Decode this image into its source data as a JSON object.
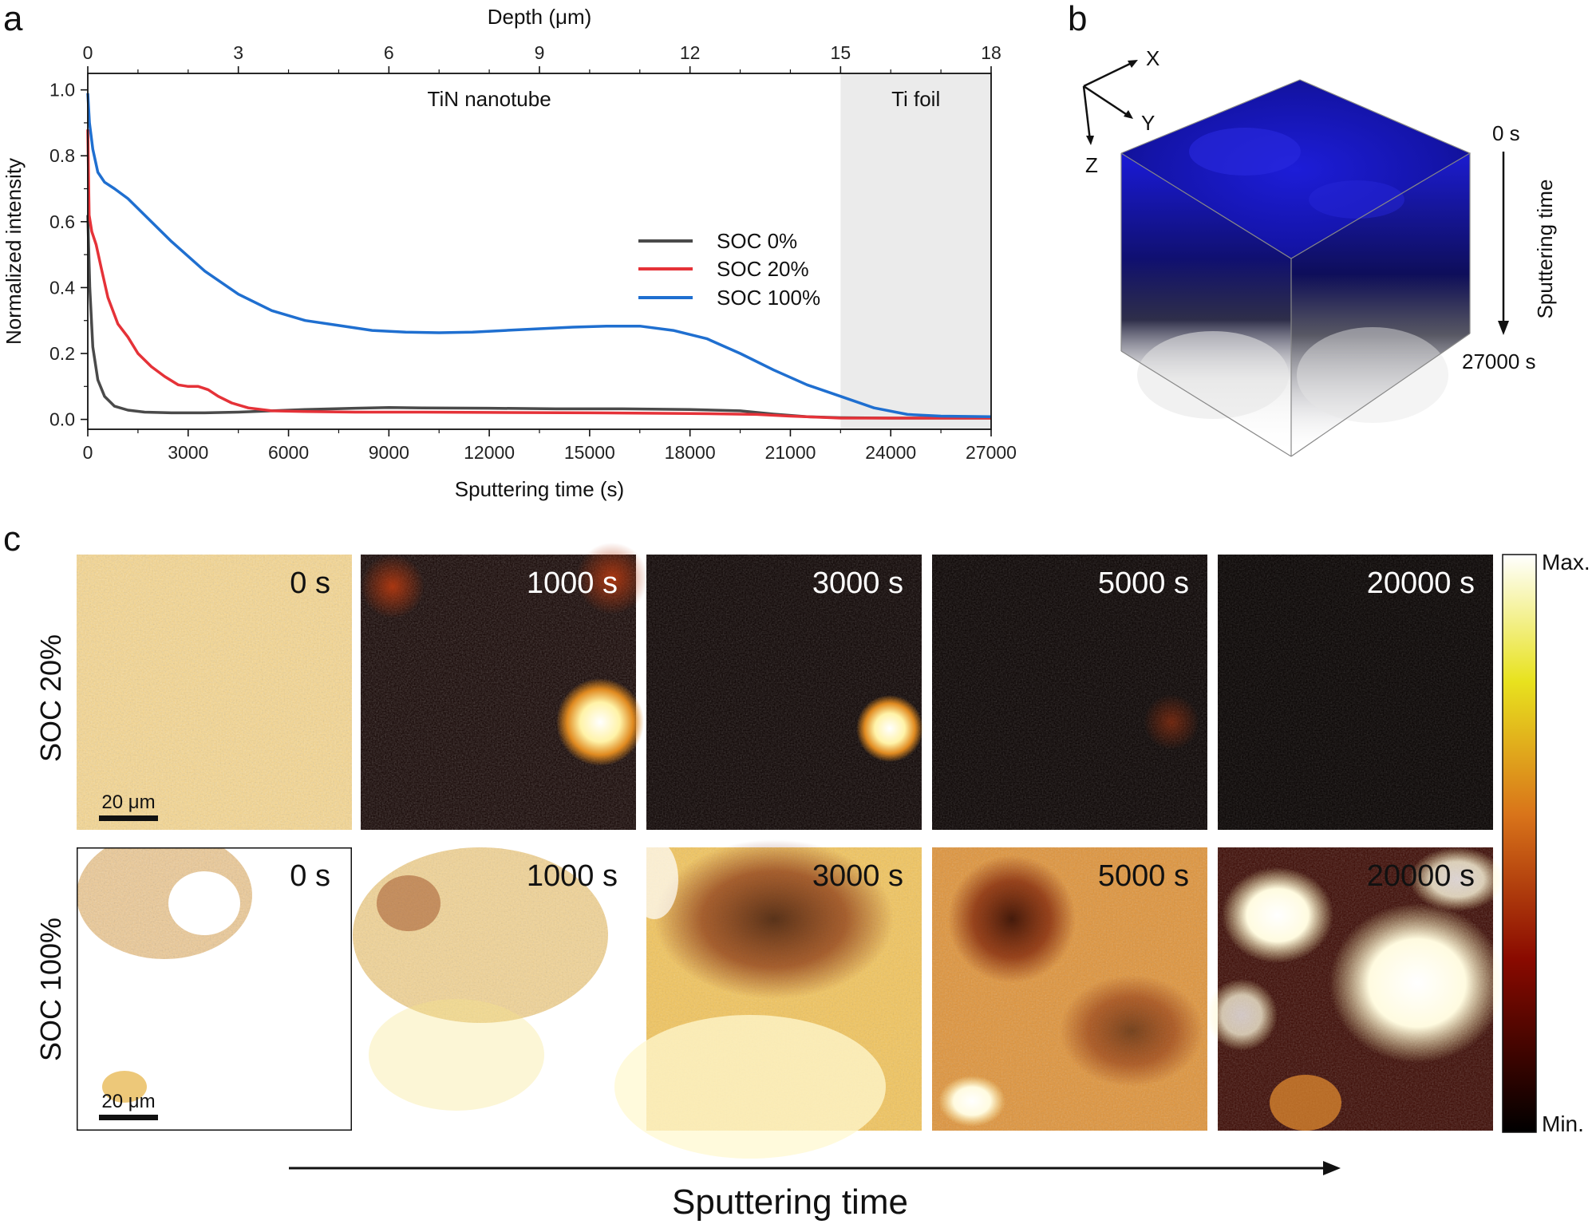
{
  "panel_labels": {
    "a": "a",
    "b": "b",
    "c": "c"
  },
  "chart_data": [
    {
      "type": "line",
      "panel": "a",
      "title": "",
      "xlabel": "Sputtering time (s)",
      "ylabel": "Normalized intensity",
      "top_xlabel": "Depth (μm)",
      "xlim": [
        0,
        27000
      ],
      "ylim": [
        -0.03,
        1.05
      ],
      "x_ticks": [
        0,
        3000,
        6000,
        9000,
        12000,
        15000,
        18000,
        21000,
        24000,
        27000
      ],
      "x_tick_labels": [
        "0",
        "3000",
        "6000",
        "9000",
        "12000",
        "15000",
        "18000",
        "21000",
        "24000",
        "27000"
      ],
      "y_ticks": [
        0.0,
        0.2,
        0.4,
        0.6,
        0.8,
        1.0
      ],
      "y_tick_labels": [
        "0.0",
        "0.2",
        "0.4",
        "0.6",
        "0.8",
        "1.0"
      ],
      "top_ticks": [
        0,
        3,
        6,
        9,
        12,
        15,
        18
      ],
      "top_tick_labels": [
        "0",
        "3",
        "6",
        "9",
        "12",
        "15",
        "18"
      ],
      "regions": [
        {
          "label": "TiN nanotube",
          "from": 0,
          "to": 22500,
          "color": "#ffffff"
        },
        {
          "label": "Ti foil",
          "from": 22500,
          "to": 27000,
          "color": "#ebebeb"
        }
      ],
      "legend_position": "center-right",
      "series": [
        {
          "name": "SOC 0%",
          "color": "#4a4a4a",
          "x": [
            0,
            60,
            150,
            300,
            500,
            800,
            1200,
            1700,
            2500,
            3500,
            4500,
            5500,
            6500,
            8000,
            9000,
            10000,
            12000,
            14000,
            16000,
            18000,
            19500,
            20500,
            21500,
            22500,
            24000,
            27000
          ],
          "y": [
            0.62,
            0.4,
            0.22,
            0.12,
            0.07,
            0.04,
            0.028,
            0.022,
            0.02,
            0.02,
            0.022,
            0.026,
            0.03,
            0.034,
            0.036,
            0.035,
            0.034,
            0.032,
            0.032,
            0.03,
            0.026,
            0.016,
            0.008,
            0.005,
            0.004,
            0.004
          ]
        },
        {
          "name": "SOC 20%",
          "color": "#e53238",
          "x": [
            0,
            40,
            120,
            250,
            400,
            600,
            900,
            1200,
            1500,
            1900,
            2300,
            2700,
            3000,
            3300,
            3600,
            3900,
            4300,
            4800,
            5500,
            6500,
            8000,
            10000,
            12000,
            15000,
            18000,
            20000,
            21000,
            22000,
            22500,
            24000,
            27000
          ],
          "y": [
            0.88,
            0.62,
            0.57,
            0.53,
            0.46,
            0.37,
            0.29,
            0.25,
            0.2,
            0.16,
            0.13,
            0.105,
            0.1,
            0.1,
            0.09,
            0.07,
            0.05,
            0.035,
            0.026,
            0.024,
            0.022,
            0.022,
            0.021,
            0.02,
            0.018,
            0.015,
            0.01,
            0.006,
            0.004,
            0.004,
            0.004
          ]
        },
        {
          "name": "SOC 100%",
          "color": "#1f6fd0",
          "x": [
            0,
            50,
            150,
            300,
            500,
            800,
            1200,
            1800,
            2500,
            3500,
            4500,
            5500,
            6500,
            7500,
            8500,
            9500,
            10500,
            11500,
            12500,
            13500,
            14500,
            15500,
            16500,
            17500,
            18500,
            19500,
            20500,
            21500,
            22500,
            23500,
            24500,
            25500,
            27000
          ],
          "y": [
            0.99,
            0.9,
            0.82,
            0.75,
            0.72,
            0.7,
            0.67,
            0.61,
            0.54,
            0.45,
            0.38,
            0.33,
            0.3,
            0.285,
            0.27,
            0.265,
            0.263,
            0.265,
            0.27,
            0.275,
            0.28,
            0.283,
            0.283,
            0.27,
            0.245,
            0.2,
            0.15,
            0.105,
            0.07,
            0.035,
            0.015,
            0.01,
            0.008
          ]
        }
      ]
    },
    {
      "type": "heatmap",
      "panel": "c",
      "colorbar": {
        "max_label": "Max.",
        "min_label": "Min."
      },
      "rows": [
        "SOC 20%",
        "SOC 100%"
      ],
      "columns": [
        "0 s",
        "1000 s",
        "3000 s",
        "5000 s",
        "20000 s"
      ],
      "scale_bar": "20 μm",
      "axis_label": "Sputtering time"
    }
  ],
  "panel_b": {
    "axes": {
      "x": "X",
      "y": "Y",
      "z": "Z"
    },
    "time_start": "0 s",
    "time_end": "27000 s",
    "time_label": "Sputtering time"
  }
}
